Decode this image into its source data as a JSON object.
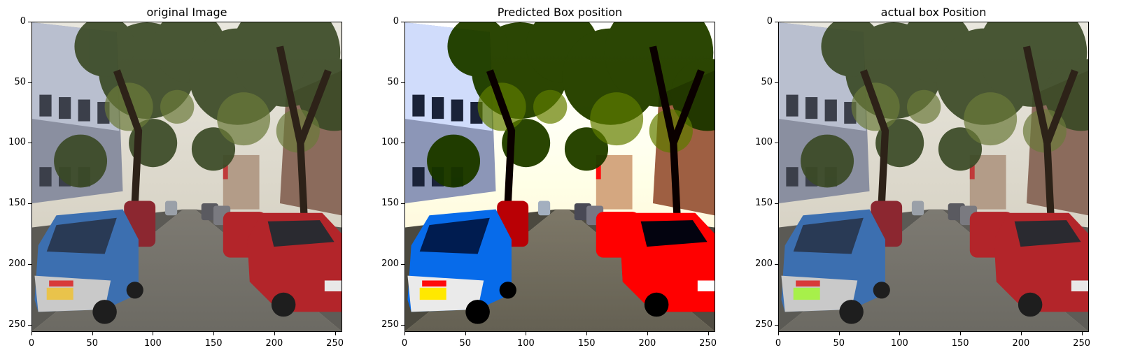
{
  "panels": [
    {
      "title": "original Image",
      "variant": "original",
      "plate_color": "#e9c34b"
    },
    {
      "title": "Predicted Box position",
      "variant": "predicted",
      "plate_color": "#f2c64a"
    },
    {
      "title": "actual box Position",
      "variant": "actual",
      "plate_color": "#a7f04a"
    }
  ],
  "axis": {
    "x_ticks": [
      "0",
      "50",
      "100",
      "150",
      "200",
      "250"
    ],
    "y_ticks": [
      "0",
      "50",
      "100",
      "150",
      "200",
      "250"
    ],
    "range": [
      0,
      256
    ]
  },
  "colors": {
    "sky": "#e9e7de",
    "foliage": "#3b4a26",
    "road": "#6c6a63",
    "blue_car": "#3c6fb0",
    "red_car": "#b3252a"
  }
}
